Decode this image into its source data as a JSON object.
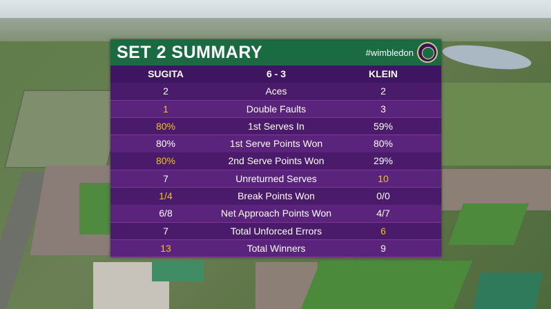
{
  "board": {
    "title": "SET 2 SUMMARY",
    "hashtag": "#wimbledon",
    "player1": "SUGITA",
    "score": "6 - 3",
    "player2": "KLEIN"
  },
  "colors": {
    "header_green": "#1a6b42",
    "row_purple": "#4a1a6b",
    "highlight_yellow": "#f0c419",
    "text_white": "#ffffff"
  },
  "stats": [
    {
      "label": "Aces",
      "p1": "2",
      "p2": "2",
      "p1_highlight": false,
      "p2_highlight": false
    },
    {
      "label": "Double Faults",
      "p1": "1",
      "p2": "3",
      "p1_highlight": true,
      "p2_highlight": false
    },
    {
      "label": "1st Serves In",
      "p1": "80%",
      "p2": "59%",
      "p1_highlight": true,
      "p2_highlight": false
    },
    {
      "label": "1st Serve Points Won",
      "p1": "80%",
      "p2": "80%",
      "p1_highlight": false,
      "p2_highlight": false
    },
    {
      "label": "2nd Serve Points Won",
      "p1": "80%",
      "p2": "29%",
      "p1_highlight": true,
      "p2_highlight": false
    },
    {
      "label": "Unreturned Serves",
      "p1": "7",
      "p2": "10",
      "p1_highlight": false,
      "p2_highlight": true
    },
    {
      "label": "Break Points Won",
      "p1": "1/4",
      "p2": "0/0",
      "p1_highlight": true,
      "p2_highlight": false
    },
    {
      "label": "Net Approach Points Won",
      "p1": "6/8",
      "p2": "4/7",
      "p1_highlight": false,
      "p2_highlight": false
    },
    {
      "label": "Total Unforced Errors",
      "p1": "7",
      "p2": "6",
      "p1_highlight": false,
      "p2_highlight": true
    },
    {
      "label": "Total Winners",
      "p1": "13",
      "p2": "9",
      "p1_highlight": true,
      "p2_highlight": false
    }
  ]
}
